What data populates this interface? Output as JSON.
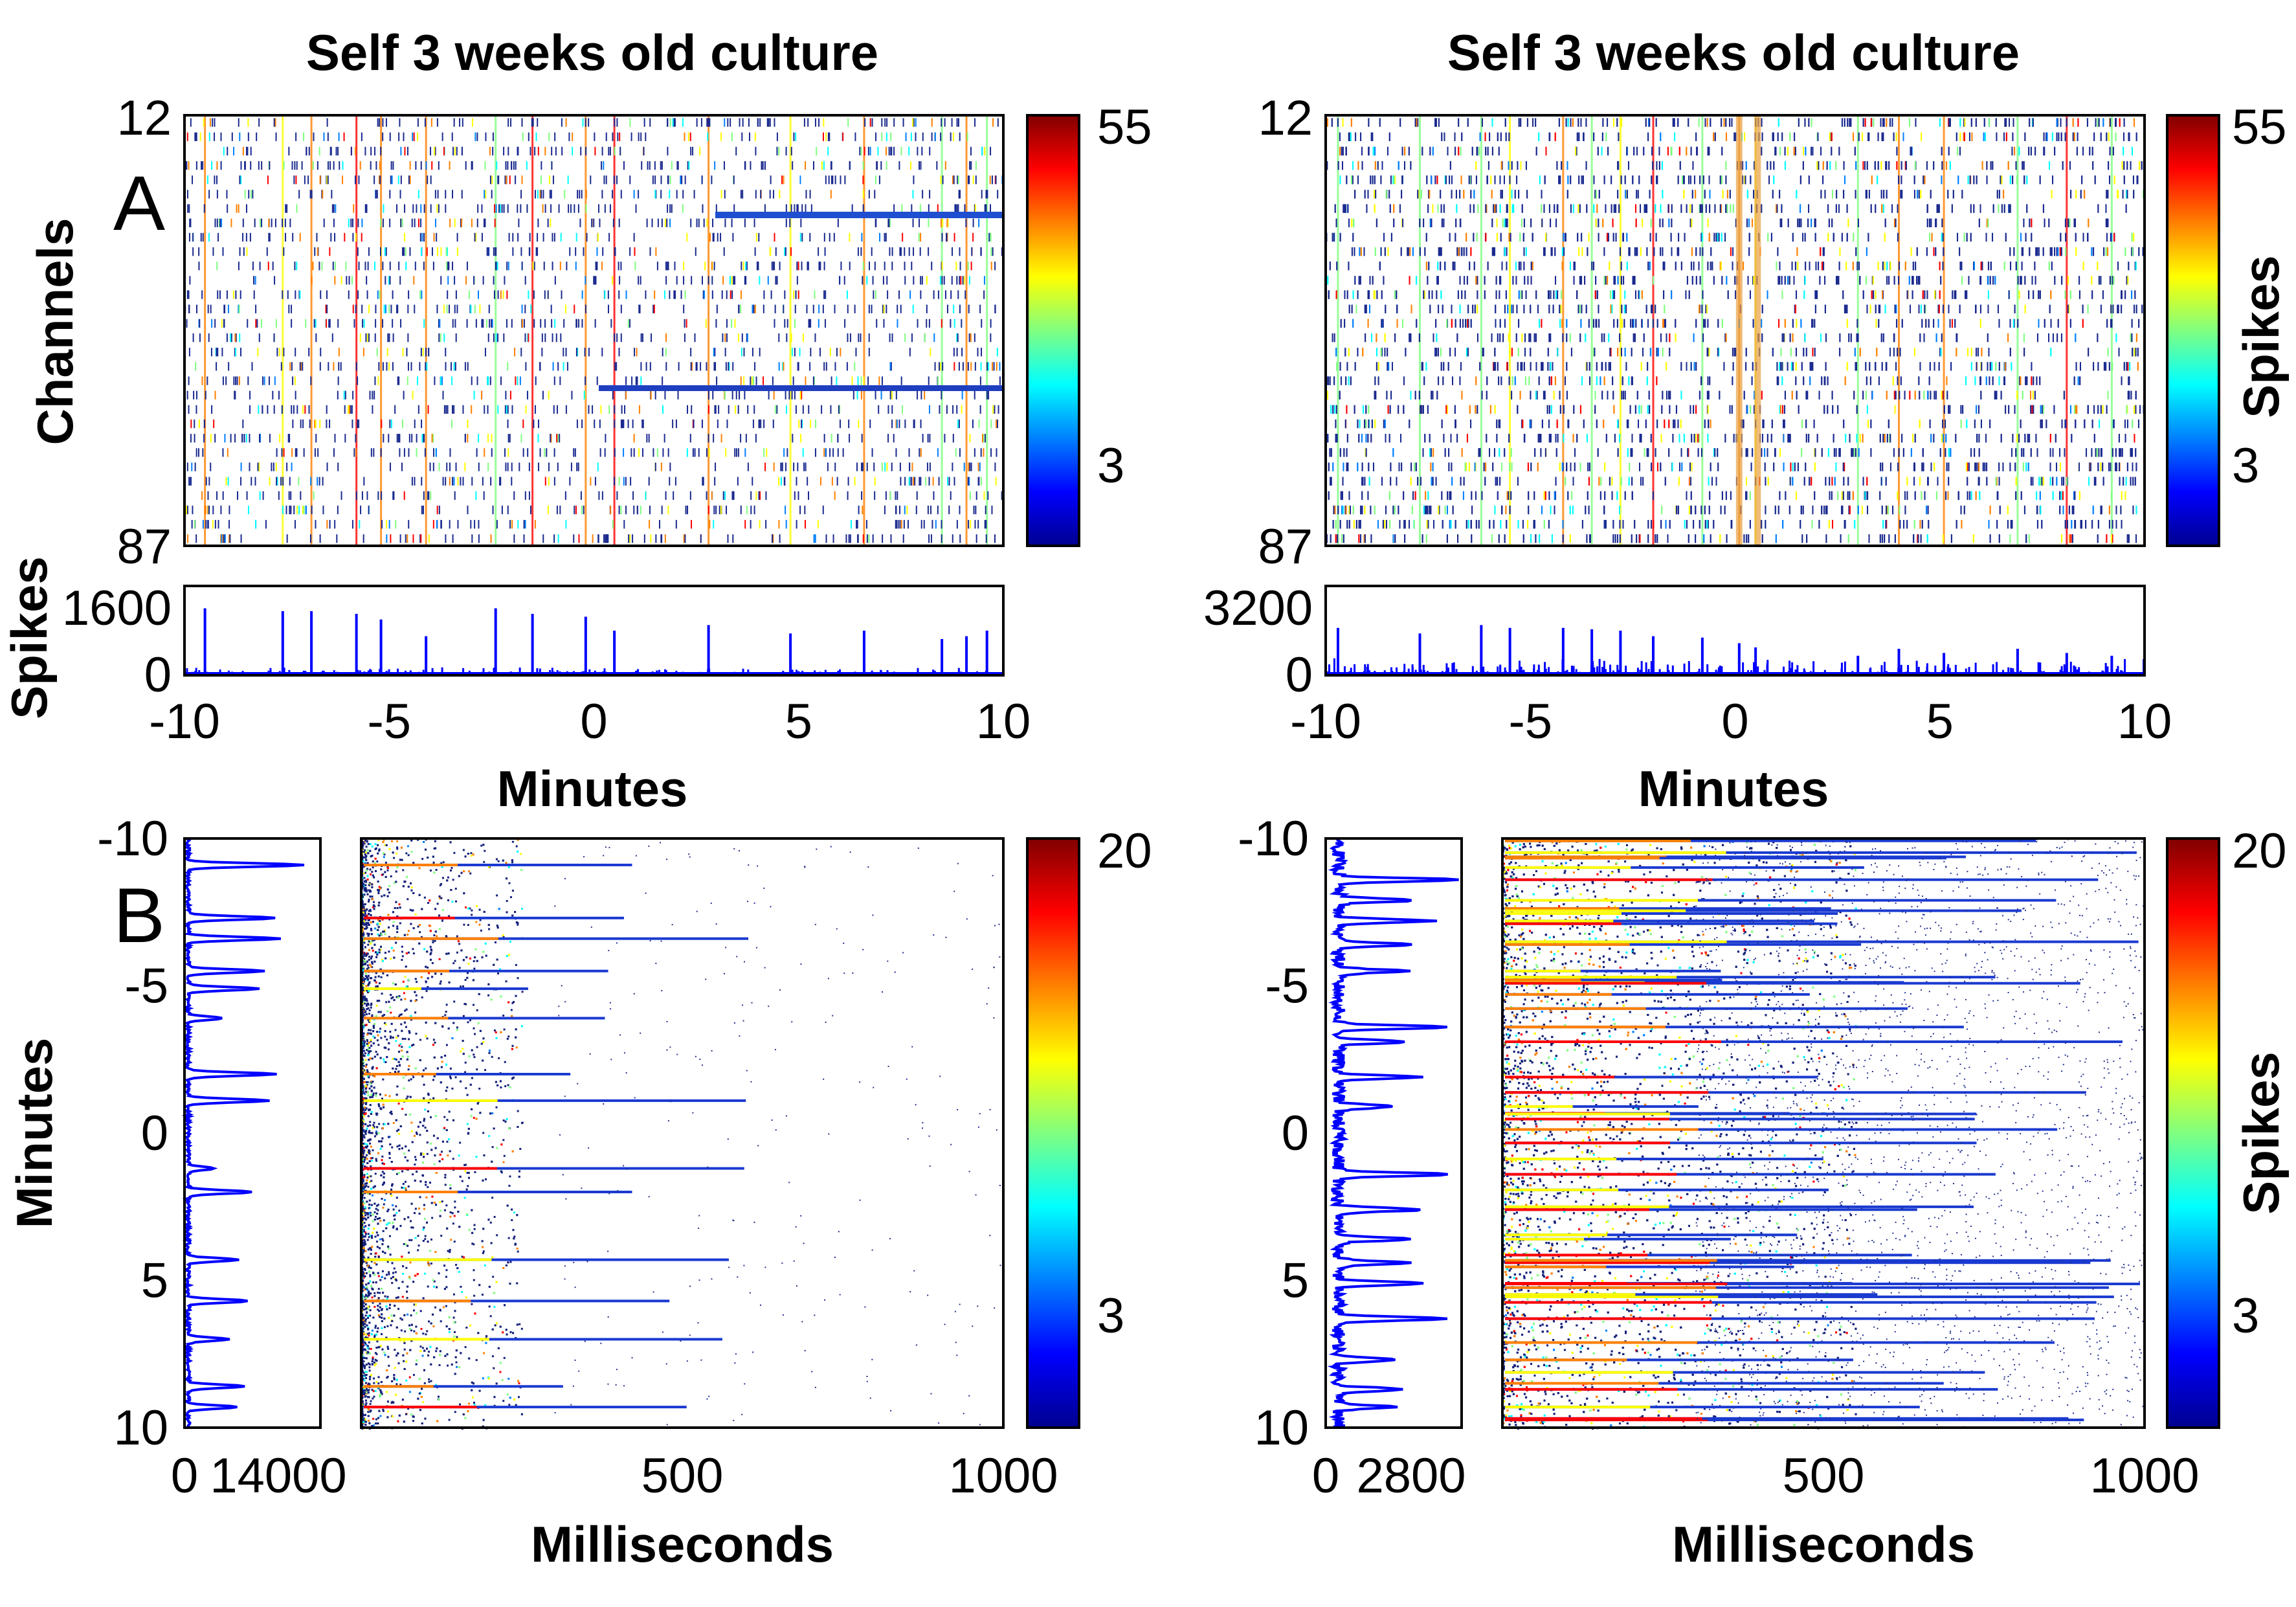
{
  "figure": {
    "letters": [
      "A",
      "B"
    ],
    "colormap": [
      "#00008f",
      "#0000ff",
      "#0080ff",
      "#00ffff",
      "#80ff80",
      "#ffff00",
      "#ff8000",
      "#ff0000",
      "#800000"
    ]
  },
  "chart_data": [
    {
      "id": "A-left-raster",
      "type": "heatmap",
      "title": "Self 3 weeks old culture",
      "ylabel": "Channels",
      "x_range_minutes": [
        -10,
        10
      ],
      "yticks": [
        "12",
        "87"
      ],
      "colorbar": {
        "ticks": [
          "55",
          "3"
        ],
        "label": ""
      }
    },
    {
      "id": "A-left-total",
      "type": "line",
      "ylabel": "Spikes",
      "xlabel": "Minutes",
      "xticks": [
        "-10",
        "-5",
        "0",
        "5",
        "10"
      ],
      "yticks": [
        "0",
        "1600"
      ],
      "ylim": [
        0,
        1600
      ],
      "x_minutes": [
        -9.5,
        -7.6,
        -6.9,
        -5.8,
        -5.2,
        -4.1,
        -2.4,
        -1.5,
        -0.2,
        0.5,
        2.8,
        4.8,
        6.6,
        8.5,
        9.1,
        9.6
      ],
      "y_spikes": [
        1200,
        1150,
        1150,
        1100,
        1000,
        700,
        1200,
        1100,
        1050,
        800,
        900,
        750,
        800,
        650,
        700,
        800
      ]
    },
    {
      "id": "A-right-raster",
      "type": "heatmap",
      "title": "Self 3 weeks old culture",
      "x_range_minutes": [
        -10,
        10
      ],
      "yticks": [
        "12",
        "87"
      ],
      "colorbar": {
        "ticks": [
          "55",
          "3"
        ],
        "label": "Spikes"
      }
    },
    {
      "id": "A-right-total",
      "type": "line",
      "xlabel": "Minutes",
      "xticks": [
        "-10",
        "-5",
        "0",
        "5",
        "10"
      ],
      "yticks": [
        "0",
        "3200"
      ],
      "ylim": [
        0,
        3200
      ],
      "x_minutes": [
        -9.7,
        -7.7,
        -6.2,
        -5.5,
        -4.2,
        -3.5,
        -2.8,
        -2.0,
        -0.8,
        0.1,
        0.5,
        3.0,
        4.0,
        5.1,
        6.9,
        8.1,
        9.2
      ],
      "y_spikes": [
        1700,
        1500,
        1800,
        1700,
        1700,
        1650,
        1600,
        1400,
        1350,
        1150,
        1000,
        700,
        950,
        800,
        950,
        800,
        700
      ]
    },
    {
      "id": "B-left-profile",
      "type": "line",
      "ylabel": "Minutes",
      "xticks": [
        "0",
        "14000"
      ],
      "yticks": [
        "-10",
        "-5",
        "0",
        "5",
        "10"
      ],
      "xlim": [
        0,
        14000
      ],
      "ylim": [
        -10,
        10
      ],
      "peaks_minutes": [
        -9.1,
        -7.3,
        -6.6,
        -5.5,
        -4.9,
        -3.9,
        -2.0,
        -1.1,
        1.2,
        2.0,
        4.3,
        5.7,
        7.0,
        8.6,
        9.3
      ],
      "peaks_spikes": [
        12500,
        9500,
        10000,
        8200,
        7800,
        3800,
        9500,
        8800,
        2800,
        7000,
        5500,
        6600,
        4500,
        6200,
        5200
      ]
    },
    {
      "id": "B-left-raster",
      "type": "heatmap",
      "xlabel": "Milliseconds",
      "xticks": [
        "500",
        "1000"
      ],
      "x_range_ms": [
        0,
        1000
      ],
      "y_range_minutes": [
        -10,
        10
      ],
      "colorbar": {
        "ticks": [
          "20",
          "3"
        ],
        "label": ""
      }
    },
    {
      "id": "B-right-profile",
      "type": "line",
      "yticks": [
        "-10",
        "-5",
        "0",
        "5",
        "10"
      ],
      "xticks": [
        "0",
        "2800"
      ],
      "xlim": [
        0,
        2800
      ],
      "ylim": [
        -10,
        10
      ],
      "peaks_minutes": [
        -8.6,
        -7.9,
        -7.2,
        -6.4,
        -5.5,
        -3.6,
        -3.1,
        -1.9,
        -0.9,
        1.4,
        2.6,
        3.6,
        4.4,
        5.1,
        6.3,
        7.7,
        8.7,
        9.3
      ],
      "peaks_spikes": [
        2600,
        1700,
        2000,
        1700,
        1500,
        2400,
        1500,
        1700,
        1200,
        2500,
        1900,
        1700,
        1500,
        1900,
        2400,
        1300,
        1500,
        1200
      ]
    },
    {
      "id": "B-right-raster",
      "type": "heatmap",
      "xlabel": "Milliseconds",
      "xticks": [
        "500",
        "1000"
      ],
      "x_range_ms": [
        0,
        1000
      ],
      "y_range_minutes": [
        -10,
        10
      ],
      "colorbar": {
        "ticks": [
          "20",
          "3"
        ],
        "label": "Spikes"
      }
    }
  ]
}
